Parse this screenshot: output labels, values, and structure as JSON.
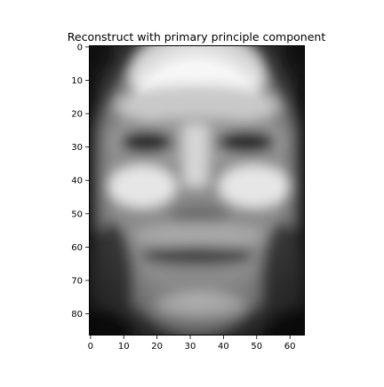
{
  "chart_data": {
    "type": "heatmap",
    "title": "Reconstruct with primary principle component",
    "xlabel": "",
    "ylabel": "",
    "colormap": "gray",
    "image_shape": [
      87,
      65
    ],
    "xlim": [
      -0.5,
      64.5
    ],
    "ylim": [
      86.5,
      -0.5
    ],
    "x_ticks": [
      0,
      10,
      20,
      30,
      40,
      50,
      60
    ],
    "y_ticks": [
      0,
      10,
      20,
      30,
      40,
      50,
      60,
      70,
      80
    ],
    "grid": false,
    "legend": "none"
  }
}
